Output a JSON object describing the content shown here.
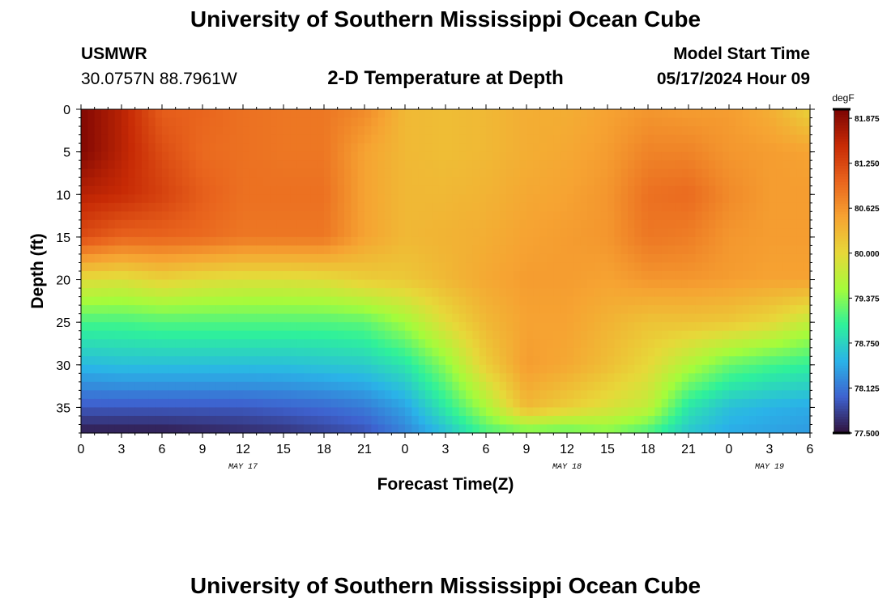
{
  "header": {
    "title": "University of Southern Mississippi Ocean Cube",
    "station": "USMWR",
    "coordinates": "30.0757N  88.7961W",
    "subtitle": "2-D Temperature at Depth",
    "model_start_label": "Model Start Time",
    "model_start_value": "05/17/2024 Hour 09"
  },
  "footer": {
    "title": "University of Southern Mississippi Ocean Cube"
  },
  "chart_data": {
    "type": "heatmap",
    "title": "2-D Temperature at Depth",
    "xlabel": "Forecast Time(Z)",
    "ylabel": "Depth (ft)",
    "x_ticks": [
      "0",
      "3",
      "6",
      "9",
      "12",
      "15",
      "18",
      "21",
      "0",
      "3",
      "6",
      "9",
      "12",
      "15",
      "18",
      "21",
      "0",
      "3",
      "6"
    ],
    "x_range_hours": [
      0,
      54
    ],
    "date_labels": [
      {
        "label": "MAY 17",
        "hour": 12
      },
      {
        "label": "MAY 18",
        "hour": 36
      },
      {
        "label": "MAY 19",
        "hour": 51
      }
    ],
    "y_ticks": [
      "0",
      "5",
      "10",
      "15",
      "20",
      "25",
      "30",
      "35"
    ],
    "y_range_ft": [
      0,
      38
    ],
    "units": "degF",
    "colorbar_ticks": [
      "81.875",
      "81.250",
      "80.625",
      "80.000",
      "79.375",
      "78.750",
      "78.125",
      "77.500"
    ],
    "color_range": [
      77.5,
      82.0
    ],
    "colors": [
      "#30123b",
      "#3e62cf",
      "#2ab3e8",
      "#2ef19b",
      "#a4fc3b",
      "#e7d839",
      "#f6a332",
      "#e9641d",
      "#c72a05",
      "#7a0403"
    ],
    "hours": [
      0,
      3,
      6,
      9,
      12,
      15,
      18,
      21,
      24,
      27,
      30,
      33,
      36,
      39,
      42,
      45,
      48,
      51,
      54
    ],
    "depths_ft": [
      0,
      5,
      10,
      15,
      20,
      25,
      30,
      35,
      38
    ],
    "temperature": [
      [
        81.95,
        81.6,
        81.05,
        81.0,
        80.9,
        80.85,
        80.85,
        80.7,
        80.3,
        80.25,
        80.3,
        80.4,
        80.4,
        80.5,
        80.6,
        80.55,
        80.55,
        80.4,
        80.05
      ],
      [
        81.95,
        81.6,
        81.2,
        80.95,
        80.9,
        80.85,
        80.85,
        80.5,
        80.3,
        80.25,
        80.3,
        80.4,
        80.45,
        80.55,
        80.75,
        80.75,
        80.6,
        80.55,
        80.5
      ],
      [
        81.6,
        81.5,
        81.3,
        81.05,
        80.9,
        80.9,
        80.9,
        80.5,
        80.3,
        80.3,
        80.35,
        80.45,
        80.5,
        80.6,
        80.9,
        80.95,
        80.7,
        80.55,
        80.55
      ],
      [
        81.2,
        81.0,
        81.0,
        80.95,
        80.85,
        80.85,
        80.85,
        80.5,
        80.3,
        80.35,
        80.4,
        80.5,
        80.55,
        80.6,
        80.85,
        80.8,
        80.6,
        80.55,
        80.55
      ],
      [
        79.95,
        79.9,
        80.05,
        79.95,
        79.9,
        79.9,
        79.95,
        80.1,
        80.15,
        80.3,
        80.45,
        80.55,
        80.55,
        80.5,
        80.6,
        80.6,
        80.55,
        80.5,
        80.5
      ],
      [
        79.1,
        79.1,
        79.15,
        79.15,
        79.15,
        79.15,
        79.15,
        79.2,
        79.5,
        79.95,
        80.3,
        80.5,
        80.5,
        80.35,
        80.2,
        80.2,
        80.15,
        80.0,
        79.7
      ],
      [
        78.55,
        78.6,
        78.6,
        78.6,
        78.6,
        78.6,
        78.65,
        78.7,
        78.9,
        79.4,
        80.1,
        80.55,
        80.45,
        80.25,
        80.0,
        79.6,
        79.25,
        79.1,
        79.0
      ],
      [
        77.95,
        77.95,
        77.95,
        77.95,
        77.95,
        78.0,
        78.05,
        78.15,
        78.4,
        78.95,
        79.55,
        80.3,
        80.1,
        79.9,
        79.7,
        78.9,
        78.6,
        78.5,
        78.45
      ],
      [
        77.55,
        77.55,
        77.55,
        77.6,
        77.65,
        77.7,
        77.8,
        77.9,
        78.2,
        78.6,
        79.1,
        79.25,
        79.2,
        79.35,
        79.1,
        78.65,
        78.45,
        78.4,
        78.35
      ]
    ]
  }
}
